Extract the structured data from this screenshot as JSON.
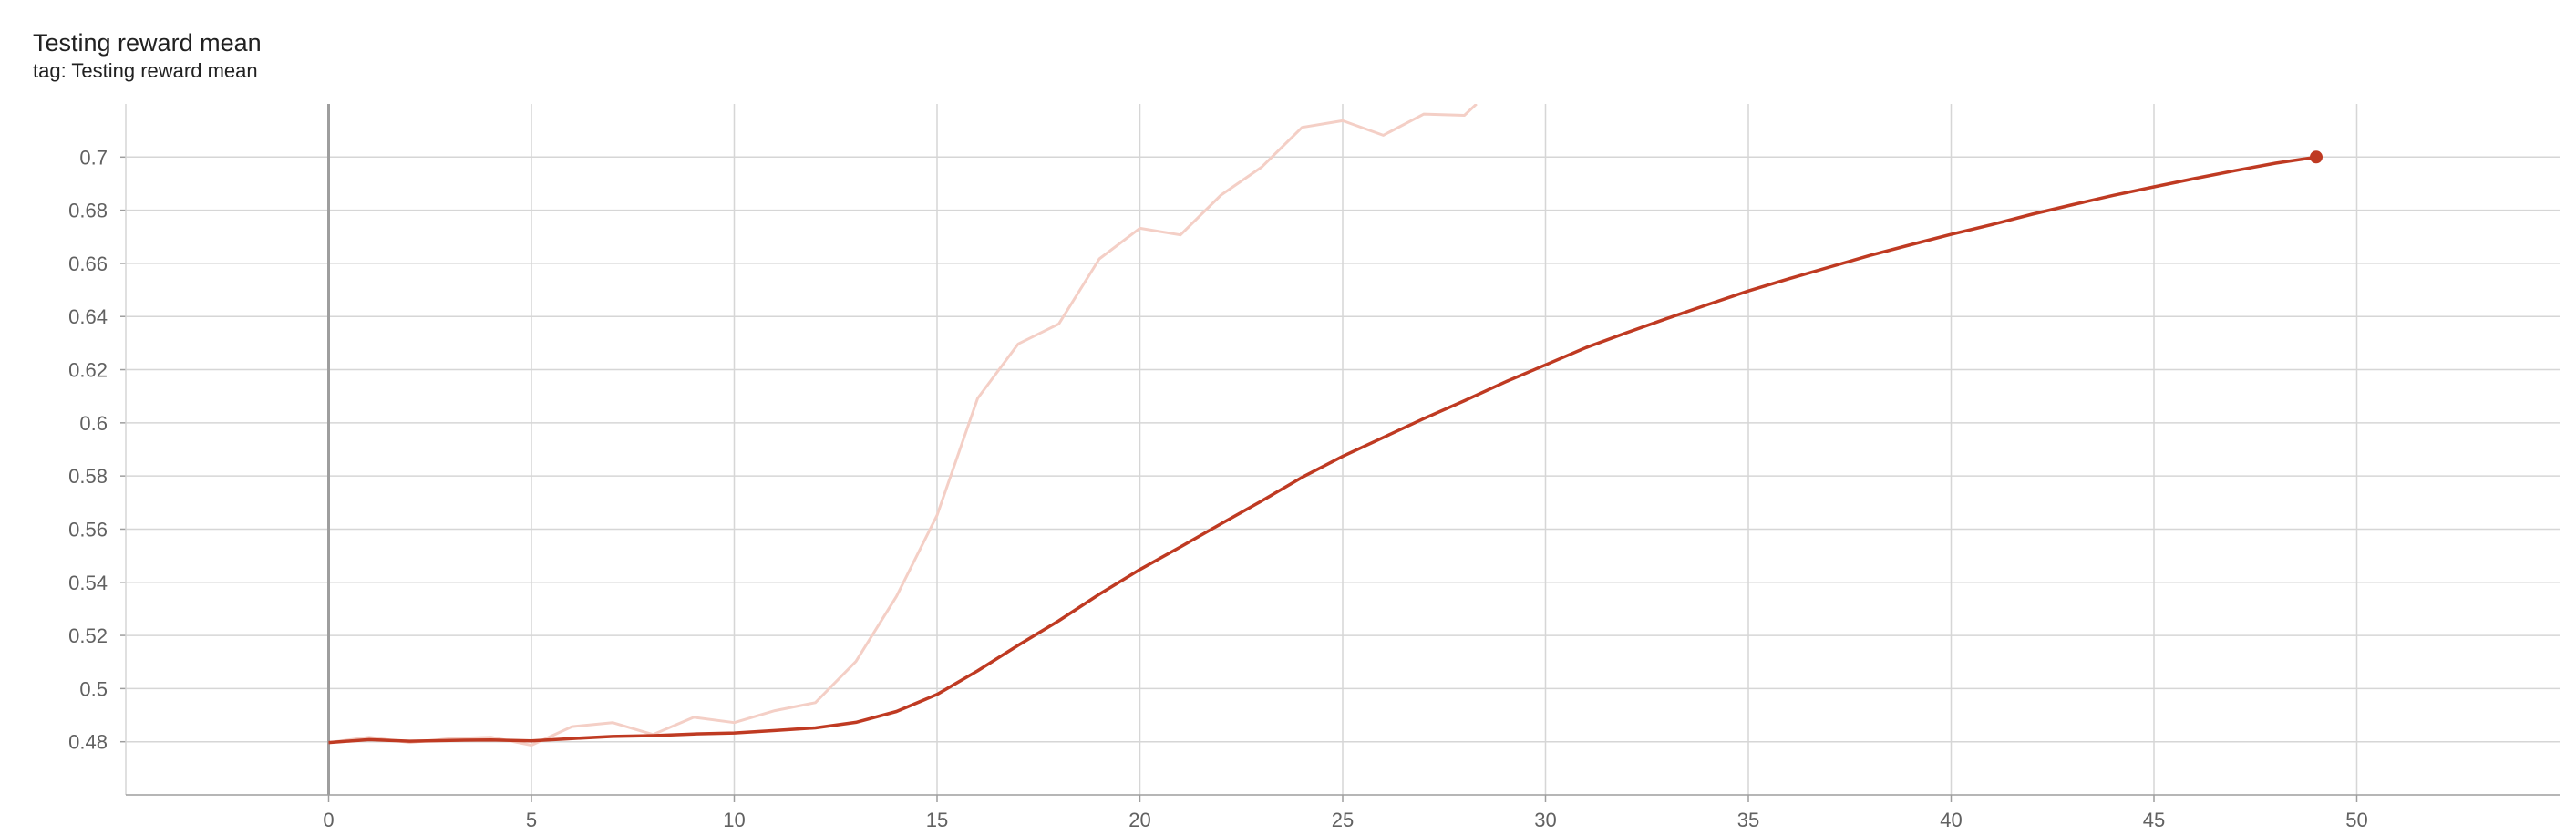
{
  "card": {
    "title": "Testing reward mean",
    "subtitle": "tag: Testing reward mean"
  },
  "chart_data": {
    "type": "line",
    "title": "Testing reward mean",
    "subtitle": "tag: Testing reward mean",
    "xlabel": "",
    "ylabel": "",
    "xlim": [
      -5,
      55
    ],
    "ylim": [
      0.46,
      0.72
    ],
    "x_ticks": [
      0,
      5,
      10,
      15,
      20,
      25,
      30,
      35,
      40,
      45,
      50
    ],
    "y_ticks": [
      0.48,
      0.5,
      0.52,
      0.54,
      0.56,
      0.58,
      0.6,
      0.62,
      0.64,
      0.66,
      0.68,
      0.7
    ],
    "y_tick_labels": [
      "0.48",
      "0.5",
      "0.52",
      "0.54",
      "0.56",
      "0.58",
      "0.6",
      "0.62",
      "0.64",
      "0.66",
      "0.68",
      "0.7"
    ],
    "grid": true,
    "legend": "none",
    "colors": {
      "smoothed": "#bf3a22",
      "raw": "#f4cfc6",
      "grid": "#d6d6d6",
      "axis": "#9e9e9e"
    },
    "series": [
      {
        "x": [
          0,
          1,
          2,
          3,
          4,
          5,
          6,
          7,
          8,
          9,
          10,
          11,
          12,
          13,
          14,
          15,
          16,
          17,
          18,
          19,
          20,
          21,
          22,
          23,
          24,
          25,
          26,
          27,
          28,
          29,
          30,
          31,
          32,
          33,
          34,
          35,
          36,
          37,
          38,
          39,
          40,
          41,
          42,
          43,
          44,
          45,
          46,
          47,
          48,
          49
        ],
        "values": [
          0.4797,
          0.4808,
          0.4802,
          0.4805,
          0.4807,
          0.4803,
          0.4812,
          0.482,
          0.4823,
          0.4829,
          0.4833,
          0.4842,
          0.4852,
          0.4873,
          0.4914,
          0.4978,
          0.5067,
          0.5163,
          0.5255,
          0.5355,
          0.5448,
          0.5533,
          0.562,
          0.5706,
          0.5795,
          0.5874,
          0.5945,
          0.6016,
          0.6083,
          0.6153,
          0.6218,
          0.6283,
          0.6339,
          0.6393,
          0.6445,
          0.6496,
          0.6542,
          0.6586,
          0.663,
          0.667,
          0.6709,
          0.6746,
          0.6785,
          0.6821,
          0.6856,
          0.6888,
          0.6919,
          0.6949,
          0.6977,
          0.7
        ]
      },
      {
        "x": [
          0,
          1,
          2,
          3,
          4,
          5,
          6,
          7,
          8,
          9,
          10,
          11,
          12,
          13,
          14,
          15,
          16,
          17,
          18,
          19,
          20,
          21,
          22,
          23,
          24,
          25,
          26,
          27,
          28,
          28.3
        ],
        "values": [
          0.4797,
          0.4817,
          0.4797,
          0.4812,
          0.4817,
          0.4787,
          0.4857,
          0.4872,
          0.4827,
          0.4892,
          0.4872,
          0.4917,
          0.4947,
          0.5102,
          0.5347,
          0.5652,
          0.6092,
          0.6297,
          0.6372,
          0.6617,
          0.6732,
          0.6707,
          0.6857,
          0.6962,
          0.7112,
          0.7137,
          0.7082,
          0.7162,
          0.7157,
          0.72
        ]
      }
    ]
  }
}
